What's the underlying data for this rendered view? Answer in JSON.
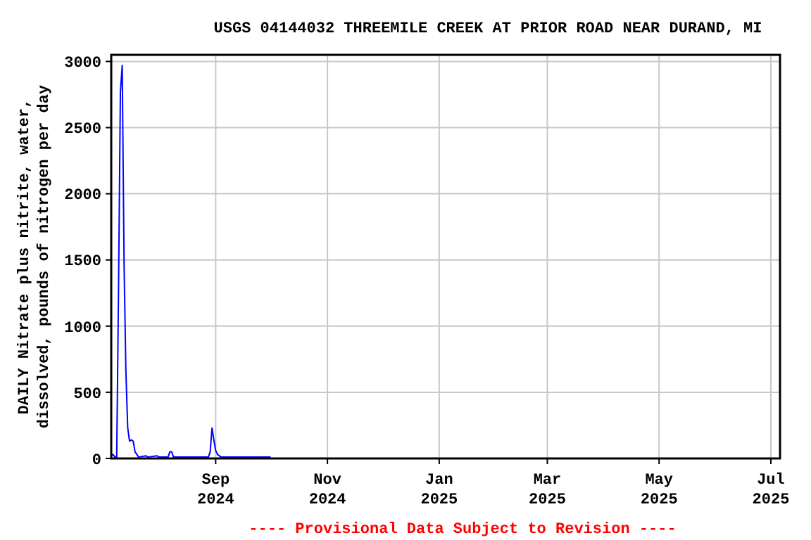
{
  "chart_data": {
    "type": "line",
    "title": "USGS 04144032 THREEMILE CREEK AT PRIOR ROAD NEAR DURAND, MI",
    "ylabel": "DAILY Nitrate plus nitrite, water,\ndissolved, pounds of nitrogen per day",
    "x": [
      "2024-07-06",
      "2024-07-07",
      "2024-07-08",
      "2024-07-09",
      "2024-07-10",
      "2024-07-11",
      "2024-07-12",
      "2024-07-13",
      "2024-07-14",
      "2024-07-15",
      "2024-07-16",
      "2024-07-17",
      "2024-07-18",
      "2024-07-19",
      "2024-07-20",
      "2024-07-21",
      "2024-07-25",
      "2024-07-26",
      "2024-07-31",
      "2024-08-01",
      "2024-08-06",
      "2024-08-07",
      "2024-08-08",
      "2024-08-09",
      "2024-08-27",
      "2024-08-28",
      "2024-08-29",
      "2024-08-30",
      "2024-08-31",
      "2024-09-01",
      "2024-09-02",
      "2024-09-04",
      "2024-10-01"
    ],
    "series": [
      {
        "color": "#0000ff",
        "values": [
          20,
          30,
          10,
          10,
          1300,
          2770,
          2970,
          1480,
          660,
          230,
          130,
          140,
          130,
          50,
          30,
          10,
          20,
          10,
          20,
          10,
          10,
          50,
          50,
          10,
          10,
          10,
          50,
          230,
          140,
          60,
          30,
          10,
          10
        ]
      }
    ],
    "xlim": [
      "2024-07-06",
      "2025-07-06"
    ],
    "xticks": [
      {
        "value": "2024-09-01",
        "label": "Sep 2024"
      },
      {
        "value": "2024-11-01",
        "label": "Nov 2024"
      },
      {
        "value": "2025-01-01",
        "label": "Jan 2025"
      },
      {
        "value": "2025-03-01",
        "label": "Mar 2025"
      },
      {
        "value": "2025-05-01",
        "label": "May 2025"
      },
      {
        "value": "2025-07-01",
        "label": "Jul 2025"
      }
    ],
    "ylim": [
      0,
      3050
    ],
    "yticks": [
      0,
      500,
      1000,
      1500,
      2000,
      2500,
      3000
    ],
    "grid": true,
    "line_style": "solid",
    "marker": "none",
    "annotations": [
      "---- Provisional Data Subject to Revision ----"
    ]
  }
}
